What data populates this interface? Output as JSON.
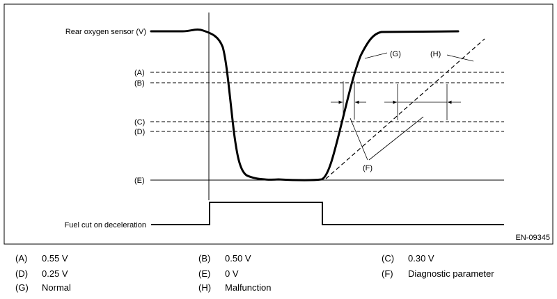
{
  "diagram": {
    "signals": {
      "sensor": "Rear oxygen sensor (V)",
      "fuel_cut": "Fuel cut on deceleration"
    },
    "levels": {
      "a": "(A)",
      "b": "(B)",
      "c": "(C)",
      "d": "(D)",
      "e": "(E)"
    },
    "callouts": {
      "g": "(G)",
      "h": "(H)",
      "f": "(F)"
    },
    "figure_id": "EN-09345"
  },
  "legend": [
    {
      "key": "(A)",
      "text": "0.55 V"
    },
    {
      "key": "(B)",
      "text": "0.50 V"
    },
    {
      "key": "(C)",
      "text": "0.30 V"
    },
    {
      "key": "(D)",
      "text": "0.25 V"
    },
    {
      "key": "(E)",
      "text": "0 V"
    },
    {
      "key": "(F)",
      "text": "Diagnostic parameter"
    },
    {
      "key": "(G)",
      "text": "Normal"
    },
    {
      "key": "(H)",
      "text": "Malfunction"
    }
  ]
}
